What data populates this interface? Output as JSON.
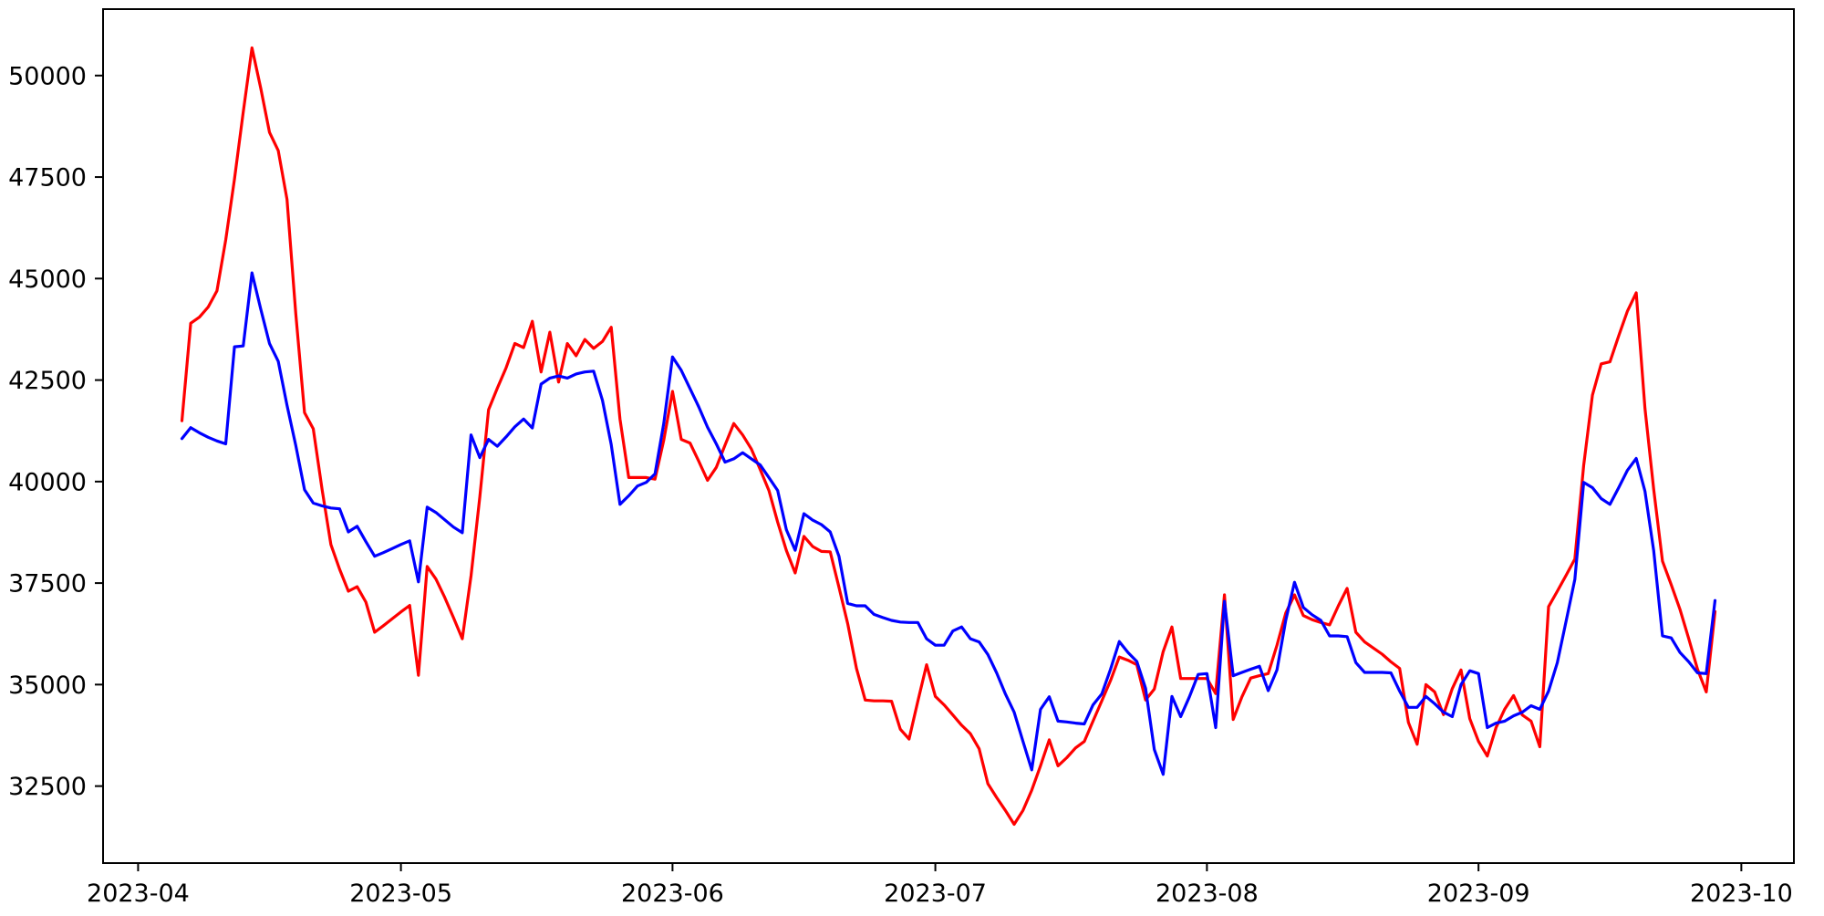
{
  "figure": {
    "background": "#ffffff",
    "plot_background": "#ffffff",
    "border_color": "#000000"
  },
  "chart_data": {
    "type": "line",
    "title": "",
    "xlabel": "",
    "ylabel": "",
    "grid": false,
    "legend": "none",
    "x_start_date": "2023-04-06",
    "x_frequency": "daily",
    "x_axis": {
      "xlim": [
        "2023-03-28",
        "2023-10-07"
      ],
      "tick_labels": [
        "2023-04",
        "2023-05",
        "2023-06",
        "2023-07",
        "2023-08",
        "2023-09",
        "2023-10"
      ],
      "tick_dates": [
        "2023-04-01",
        "2023-05-01",
        "2023-06-01",
        "2023-07-01",
        "2023-08-01",
        "2023-09-01",
        "2023-10-01"
      ]
    },
    "y_axis": {
      "ticks": [
        32500,
        35000,
        37500,
        40000,
        42500,
        45000,
        47500,
        50000
      ],
      "ylim": [
        30604,
        51636
      ]
    },
    "series": [
      {
        "name": "red",
        "color": "#ff0000",
        "values": [
          41500,
          43900,
          44050,
          44300,
          44700,
          45950,
          47450,
          49100,
          50680,
          49690,
          48600,
          48150,
          46950,
          44140,
          41700,
          41300,
          39800,
          38450,
          37840,
          37300,
          37410,
          37030,
          36290,
          36450,
          36620,
          36790,
          36950,
          35230,
          37910,
          37600,
          37150,
          36650,
          36130,
          37680,
          39620,
          41770,
          42300,
          42800,
          43400,
          43300,
          43950,
          42700,
          43680,
          42450,
          43400,
          43100,
          43500,
          43280,
          43450,
          43800,
          41540,
          40100,
          40100,
          40100,
          40060,
          41020,
          42220,
          41040,
          40950,
          40500,
          40030,
          40350,
          40900,
          41430,
          41150,
          40800,
          40300,
          39780,
          39000,
          38300,
          37750,
          38650,
          38400,
          38280,
          38270,
          37400,
          36500,
          35400,
          34620,
          34600,
          34600,
          34590,
          33900,
          33660,
          34590,
          35490,
          34710,
          34500,
          34250,
          34000,
          33790,
          33420,
          32560,
          32220,
          31900,
          31560,
          31900,
          32400,
          33000,
          33640,
          33000,
          33200,
          33440,
          33600,
          34100,
          34600,
          35100,
          35680,
          35600,
          35490,
          34620,
          34890,
          35810,
          36420,
          35150,
          35150,
          35150,
          35150,
          34780,
          37210,
          34140,
          34700,
          35160,
          35220,
          35270,
          35970,
          36760,
          37210,
          36700,
          36600,
          36530,
          36470,
          36940,
          37370,
          36290,
          36050,
          35900,
          35750,
          35560,
          35400,
          34070,
          33530,
          35000,
          34820,
          34260,
          34900,
          35360,
          34160,
          33600,
          33240,
          33940,
          34400,
          34730,
          34250,
          34100,
          33470,
          36920,
          37300,
          37690,
          38090,
          40400,
          42130,
          42900,
          42950,
          43590,
          44200,
          44650,
          41800,
          39800,
          38040,
          37460,
          36850,
          36130,
          35380,
          34820,
          36800
        ]
      },
      {
        "name": "blue",
        "color": "#0000ff",
        "values": [
          41060,
          41330,
          41200,
          41090,
          41000,
          40930,
          43320,
          43340,
          45140,
          44250,
          43400,
          42960,
          41880,
          40890,
          39800,
          39470,
          39400,
          39350,
          39330,
          38760,
          38900,
          38520,
          38160,
          38250,
          38350,
          38450,
          38540,
          37530,
          39370,
          39240,
          39060,
          38880,
          38740,
          41150,
          40590,
          41040,
          40870,
          41100,
          41350,
          41540,
          41320,
          42400,
          42550,
          42600,
          42550,
          42650,
          42700,
          42720,
          42000,
          40910,
          39440,
          39650,
          39890,
          39980,
          40190,
          41430,
          43070,
          42740,
          42290,
          41840,
          41340,
          40930,
          40480,
          40560,
          40710,
          40560,
          40410,
          40100,
          39780,
          38810,
          38310,
          39210,
          39050,
          38940,
          38760,
          38160,
          37000,
          36940,
          36940,
          36730,
          36650,
          36580,
          36540,
          36530,
          36530,
          36130,
          35970,
          35970,
          36320,
          36420,
          36130,
          36050,
          35740,
          35290,
          34770,
          34320,
          33600,
          32900,
          34390,
          34700,
          34100,
          34080,
          34050,
          34030,
          34500,
          34770,
          35380,
          36060,
          35790,
          35570,
          34910,
          33400,
          32790,
          34710,
          34210,
          34700,
          35250,
          35270,
          33940,
          37050,
          35220,
          35300,
          35380,
          35450,
          34850,
          35360,
          36580,
          37520,
          36900,
          36720,
          36580,
          36200,
          36200,
          36180,
          35540,
          35300,
          35300,
          35300,
          35290,
          34840,
          34440,
          34440,
          34710,
          34530,
          34320,
          34210,
          35000,
          35340,
          35270,
          33940,
          34050,
          34100,
          34230,
          34320,
          34480,
          34390,
          34840,
          35540,
          36560,
          37590,
          39980,
          39850,
          39580,
          39440,
          39850,
          40280,
          40570,
          39760,
          38290,
          36200,
          36150,
          35790,
          35560,
          35290,
          35270,
          37070
        ]
      }
    ]
  }
}
